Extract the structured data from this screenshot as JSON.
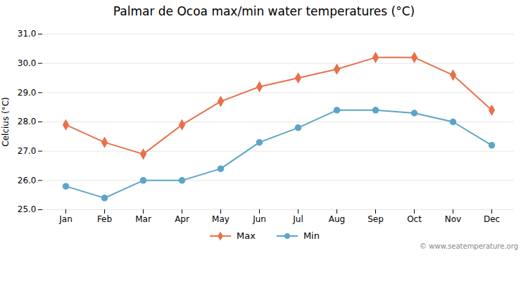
{
  "chart_data": {
    "type": "line",
    "title": "Palmar de Ocoa max/min water temperatures (°C)",
    "ylabel": "Celcius (°C)",
    "categories": [
      "Jan",
      "Feb",
      "Mar",
      "Apr",
      "May",
      "Jun",
      "Jul",
      "Aug",
      "Sep",
      "Oct",
      "Nov",
      "Dec"
    ],
    "series": [
      {
        "name": "Max",
        "color": "#e8704a",
        "marker": "diamond",
        "values": [
          27.9,
          27.3,
          26.9,
          27.9,
          28.7,
          29.2,
          29.5,
          29.8,
          30.2,
          30.2,
          29.6,
          28.4
        ]
      },
      {
        "name": "Min",
        "color": "#5aa5c8",
        "marker": "circle",
        "values": [
          25.8,
          25.4,
          26.0,
          26.0,
          26.4,
          27.3,
          27.8,
          28.4,
          28.4,
          28.3,
          28.0,
          27.2
        ]
      }
    ],
    "ylim": [
      25.0,
      31.0
    ],
    "yticks": [
      25,
      26,
      27,
      28,
      29,
      30,
      31
    ],
    "grid": true,
    "legend": "bottom",
    "annotations": [
      "© www.seatemperature.org"
    ]
  }
}
